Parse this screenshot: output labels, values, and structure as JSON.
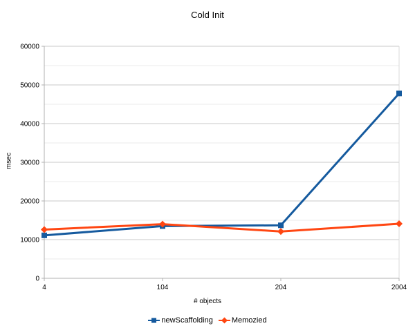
{
  "chart_data": {
    "type": "line",
    "title": "Cold Init",
    "xlabel": "# objects",
    "ylabel": "msec",
    "categories": [
      "4",
      "104",
      "204",
      "2004"
    ],
    "series": [
      {
        "name": "newScaffolding",
        "color": "#155A9E",
        "marker": "square",
        "values": [
          11100,
          13500,
          13700,
          47800
        ]
      },
      {
        "name": "Memozied",
        "color": "#FF4612",
        "marker": "diamond",
        "values": [
          12600,
          14000,
          12100,
          14100
        ]
      }
    ],
    "ylim": [
      0,
      60000
    ],
    "y_major_step": 10000,
    "y_minor_step": 5000,
    "y_tick_labels": [
      "0",
      "10000",
      "20000",
      "30000",
      "40000",
      "50000",
      "60000"
    ],
    "grid": "major+minor horizontal",
    "legend_position": "bottom",
    "colors": {
      "background": "#ffffff",
      "grid_major": "#c8c8c8",
      "grid_minor": "#ebebeb",
      "plot_right_edge": "#d9d9d9",
      "axis": "#b0b0b0",
      "text": "#000000"
    }
  }
}
